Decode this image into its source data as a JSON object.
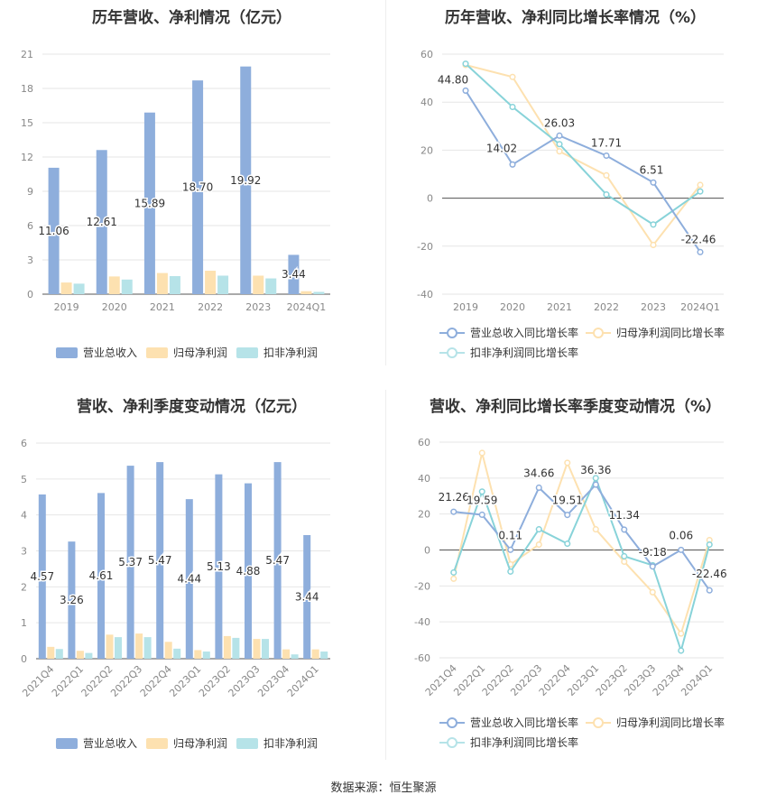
{
  "source_note": "数据来源：恒生聚源",
  "colors": {
    "revenue": "#8eaedc",
    "netprofit": "#fde1b0",
    "deducted": "#b6e3e8",
    "revenue_line": "#8eaedc",
    "netprofit_line": "#fde1b0",
    "deducted_line": "#88d3d9"
  },
  "chart_data": [
    {
      "id": "annual_bar",
      "type": "bar",
      "title": "历年营收、净利情况（亿元）",
      "categories": [
        "2019",
        "2020",
        "2021",
        "2022",
        "2023",
        "2024Q1"
      ],
      "ylim": [
        0,
        21
      ],
      "yticks": [
        0,
        3,
        6,
        9,
        12,
        15,
        18,
        21
      ],
      "series": [
        {
          "name": "营业总收入",
          "values": [
            11.06,
            12.61,
            15.89,
            18.7,
            19.92,
            3.44
          ],
          "labels": [
            "11.06",
            "12.61",
            "15.89",
            "18.70",
            "19.92",
            "3.44"
          ]
        },
        {
          "name": "归母净利润",
          "values": [
            1.02,
            1.55,
            1.85,
            2.05,
            1.62,
            0.26
          ]
        },
        {
          "name": "扣非净利润",
          "values": [
            0.92,
            1.28,
            1.58,
            1.62,
            1.38,
            0.2
          ]
        }
      ],
      "legend": "bottom"
    },
    {
      "id": "annual_line",
      "type": "line",
      "title": "历年营收、净利同比增长率情况（%）",
      "categories": [
        "2019",
        "2020",
        "2021",
        "2022",
        "2023",
        "2024Q1"
      ],
      "ylim": [
        -40,
        60
      ],
      "yticks": [
        -40,
        -20,
        0,
        20,
        40,
        60
      ],
      "series": [
        {
          "name": "营业总收入同比增长率",
          "values": [
            44.8,
            14.02,
            26.03,
            17.71,
            6.51,
            -22.46
          ],
          "labels": [
            "44.80",
            "14.02",
            "26.03",
            "17.71",
            "6.51",
            "-22.46"
          ]
        },
        {
          "name": "归母净利润同比增长率",
          "values": [
            55.5,
            50.5,
            19.5,
            9.5,
            -19.5,
            5.5
          ]
        },
        {
          "name": "扣非净利润同比增长率",
          "values": [
            56.0,
            38.0,
            22.5,
            1.5,
            -11.0,
            2.8
          ]
        }
      ],
      "legend": "bottom"
    },
    {
      "id": "quarter_bar",
      "type": "bar",
      "title": "营收、净利季度变动情况（亿元）",
      "categories": [
        "2021Q4",
        "2022Q1",
        "2022Q2",
        "2022Q3",
        "2022Q4",
        "2023Q1",
        "2023Q2",
        "2023Q3",
        "2023Q4",
        "2024Q1"
      ],
      "ylim": [
        0,
        6
      ],
      "yticks": [
        0,
        1,
        2,
        3,
        4,
        5,
        6
      ],
      "series": [
        {
          "name": "营业总收入",
          "values": [
            4.57,
            3.26,
            4.61,
            5.37,
            5.47,
            4.44,
            5.13,
            4.88,
            5.47,
            3.44
          ],
          "labels": [
            "4.57",
            "3.26",
            "4.61",
            "5.37",
            "5.47",
            "4.44",
            "5.13",
            "4.88",
            "5.47",
            "3.44"
          ]
        },
        {
          "name": "归母净利润",
          "values": [
            0.33,
            0.22,
            0.67,
            0.7,
            0.47,
            0.24,
            0.63,
            0.55,
            0.26,
            0.26
          ]
        },
        {
          "name": "扣非净利润",
          "values": [
            0.27,
            0.16,
            0.6,
            0.6,
            0.28,
            0.2,
            0.58,
            0.55,
            0.12,
            0.2
          ]
        }
      ],
      "legend": "bottom"
    },
    {
      "id": "quarter_line",
      "type": "line",
      "title": "营收、净利同比增长率季度变动情况（%）",
      "categories": [
        "2021Q4",
        "2022Q1",
        "2022Q2",
        "2022Q3",
        "2022Q4",
        "2023Q1",
        "2023Q2",
        "2023Q3",
        "2023Q4",
        "2024Q1"
      ],
      "ylim": [
        -60,
        60
      ],
      "yticks": [
        -60,
        -40,
        -20,
        0,
        20,
        40,
        60
      ],
      "series": [
        {
          "name": "营业总收入同比增长率",
          "values": [
            21.26,
            19.59,
            0.11,
            34.66,
            19.51,
            36.36,
            11.34,
            -9.18,
            0.06,
            -22.46
          ],
          "labels": [
            "21.26",
            "19.59",
            "0.11",
            "34.66",
            "19.51",
            "36.36",
            "11.34",
            "-9.18",
            "0.06",
            "-22.46"
          ]
        },
        {
          "name": "归母净利润同比增长率",
          "values": [
            -16.0,
            54.0,
            -8.0,
            3.0,
            48.5,
            11.5,
            -6.5,
            -23.5,
            -46.5,
            5.5
          ]
        },
        {
          "name": "扣非净利润同比增长率",
          "values": [
            -12.5,
            32.5,
            -12.0,
            11.5,
            3.5,
            40.0,
            -3.5,
            -8.5,
            -56.0,
            3.0
          ]
        }
      ],
      "legend": "bottom"
    }
  ]
}
